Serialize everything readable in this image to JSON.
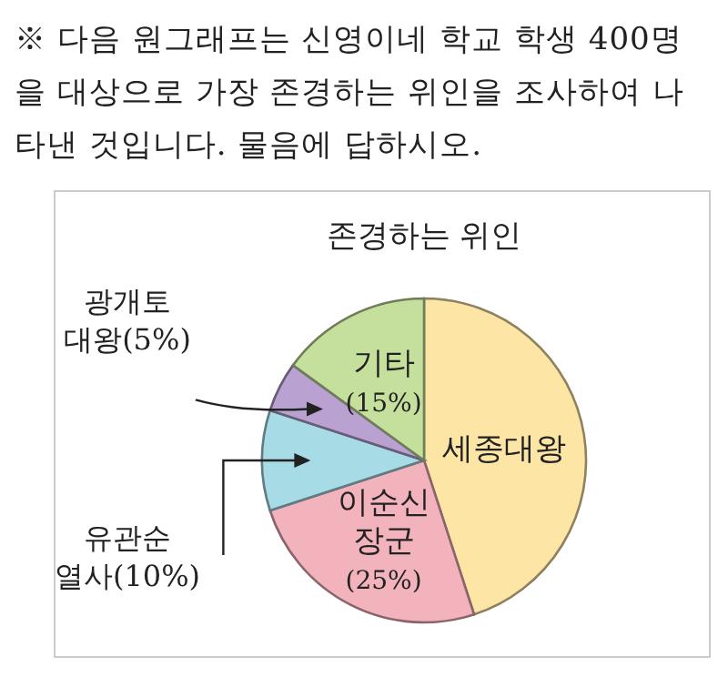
{
  "chart_data": {
    "type": "pie",
    "subtitle": "※ 다음 원그래프는 신영이네 학교 학생 400명을 대상으로 가장 존경하는 위인을 조사하여 나타낸 것입니다. 물음에 답하시오.",
    "title": "존경하는 위인",
    "categories": [
      "세종대왕",
      "이순신 장군",
      "유관순 열사",
      "광개토 대왕",
      "기타"
    ],
    "values": [
      45,
      25,
      10,
      5,
      15
    ],
    "value_labels": [
      null,
      "(25%)",
      "(10%)",
      "(5%)",
      "(15%)"
    ],
    "colors": [
      "#fde5a6",
      "#f2b3bd",
      "#a7dbe5",
      "#b9a2d2",
      "#c5df9d"
    ]
  }
}
